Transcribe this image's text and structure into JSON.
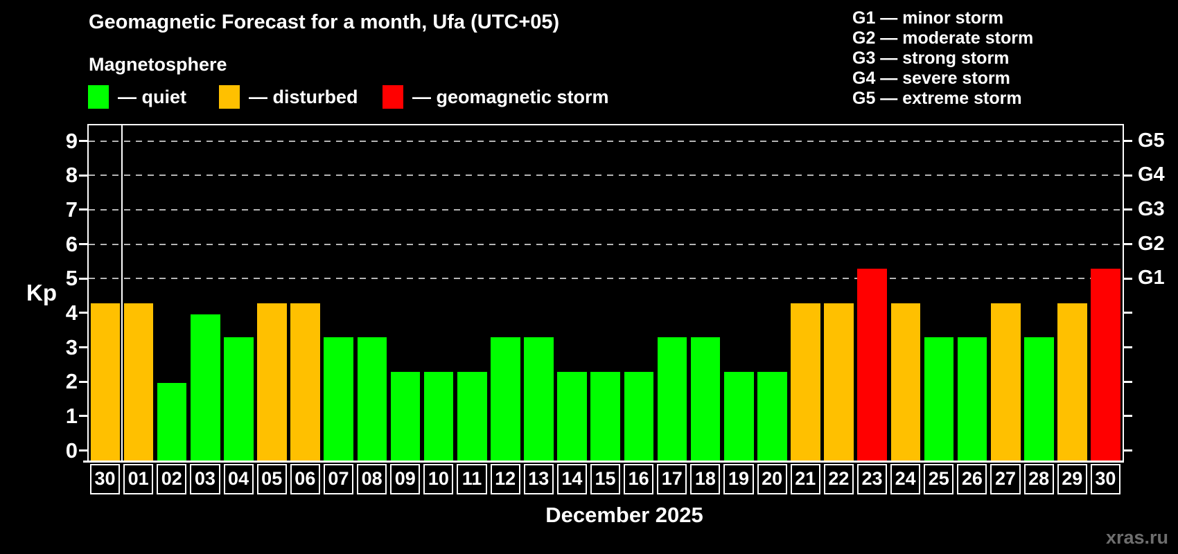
{
  "title": "Geomagnetic Forecast for a month, Ufa (UTC+05)",
  "subtitle": "Magnetosphere",
  "status_legend": [
    {
      "key": "quiet",
      "label": "— quiet"
    },
    {
      "key": "disturbed",
      "label": "— disturbed"
    },
    {
      "key": "storm",
      "label": "— geomagnetic storm"
    }
  ],
  "g_scale_legend": [
    "G1 — minor storm",
    "G2 — moderate storm",
    "G3 — strong storm",
    "G4 — severe storm",
    "G5 — extreme storm"
  ],
  "colors": {
    "quiet": "#00ff00",
    "disturbed": "#ffc000",
    "storm": "#ff0000",
    "background": "#000000",
    "grid": "#b5b5b5",
    "axis": "#ffffff",
    "watermark": "#6e6e6e"
  },
  "y_axis": {
    "label": "Kp",
    "ticks": [
      "0",
      "1",
      "2",
      "3",
      "4",
      "5",
      "6",
      "7",
      "8",
      "9"
    ]
  },
  "right_axis": {
    "labels": [
      {
        "kp": 5,
        "text": "G1"
      },
      {
        "kp": 6,
        "text": "G2"
      },
      {
        "kp": 7,
        "text": "G3"
      },
      {
        "kp": 8,
        "text": "G4"
      },
      {
        "kp": 9,
        "text": "G5"
      }
    ]
  },
  "x_axis_title": "December 2025",
  "watermark": "xras.ru",
  "chart_data": {
    "type": "bar",
    "title": "Geomagnetic Forecast for a month, Ufa (UTC+05)",
    "xlabel": "December 2025",
    "ylabel": "Kp",
    "ylim": [
      0,
      9
    ],
    "grid": "horizontal dashed gray lines at Kp 5,6,7,8,9 (storm levels G1–G5)",
    "legend_position": "top-left",
    "categories": [
      "30",
      "01",
      "02",
      "03",
      "04",
      "05",
      "06",
      "07",
      "08",
      "09",
      "10",
      "11",
      "12",
      "13",
      "14",
      "15",
      "16",
      "17",
      "18",
      "19",
      "20",
      "21",
      "22",
      "23",
      "24",
      "25",
      "26",
      "27",
      "28",
      "29",
      "30"
    ],
    "values": [
      4,
      4,
      1.67,
      3.67,
      3,
      4,
      4,
      3,
      3,
      2,
      2,
      2,
      3,
      3,
      2,
      2,
      2,
      3,
      3,
      2,
      2,
      4,
      4,
      5,
      4,
      3,
      3,
      4,
      3,
      4,
      5
    ],
    "statuses": [
      "disturbed",
      "disturbed",
      "quiet",
      "quiet",
      "quiet",
      "disturbed",
      "disturbed",
      "quiet",
      "quiet",
      "quiet",
      "quiet",
      "quiet",
      "quiet",
      "quiet",
      "quiet",
      "quiet",
      "quiet",
      "quiet",
      "quiet",
      "quiet",
      "quiet",
      "disturbed",
      "disturbed",
      "storm",
      "disturbed",
      "quiet",
      "quiet",
      "disturbed",
      "quiet",
      "disturbed",
      "storm"
    ],
    "note": "First bar (30) is the last day of the previous month, separated by a vertical line"
  }
}
